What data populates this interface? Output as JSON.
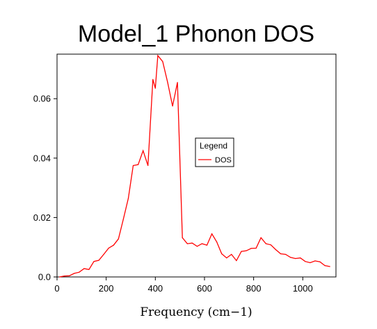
{
  "chart_data": {
    "type": "line",
    "title": "Model_1 Phonon DOS",
    "xlabel": "Frequency (cm−1)",
    "ylabel": "",
    "xlim": [
      0,
      1135
    ],
    "ylim": [
      0,
      0.075
    ],
    "x_ticks": [
      "0",
      "200",
      "400",
      "600",
      "800",
      "1000"
    ],
    "y_ticks": [
      "0.0",
      "0.02",
      "0.04",
      "0.06"
    ],
    "legend": {
      "title": "Legend",
      "position": "center-right"
    },
    "series": [
      {
        "name": "DOS",
        "color": "#ff0000",
        "x": [
          10,
          30,
          50,
          70,
          90,
          110,
          130,
          150,
          170,
          190,
          210,
          230,
          250,
          270,
          290,
          310,
          330,
          350,
          370,
          390,
          400,
          410,
          430,
          450,
          470,
          490,
          510,
          530,
          550,
          570,
          590,
          610,
          630,
          650,
          670,
          690,
          710,
          730,
          750,
          770,
          790,
          810,
          830,
          850,
          870,
          890,
          910,
          930,
          950,
          970,
          990,
          1010,
          1030,
          1050,
          1070,
          1090,
          1110
        ],
        "values": [
          0.0,
          0.0003,
          0.0004,
          0.0012,
          0.0016,
          0.0028,
          0.0025,
          0.0052,
          0.0056,
          0.0076,
          0.0097,
          0.0107,
          0.0128,
          0.0195,
          0.0265,
          0.0375,
          0.0378,
          0.0425,
          0.0375,
          0.0665,
          0.0635,
          0.0745,
          0.0725,
          0.0655,
          0.0575,
          0.0655,
          0.0132,
          0.0112,
          0.0114,
          0.0103,
          0.0112,
          0.0107,
          0.0145,
          0.0118,
          0.0078,
          0.0064,
          0.0076,
          0.0055,
          0.0086,
          0.0088,
          0.0096,
          0.0097,
          0.0132,
          0.0112,
          0.0108,
          0.0092,
          0.0078,
          0.0076,
          0.0066,
          0.0062,
          0.0064,
          0.0052,
          0.0048,
          0.0054,
          0.0051,
          0.0038,
          0.0035
        ]
      }
    ]
  }
}
